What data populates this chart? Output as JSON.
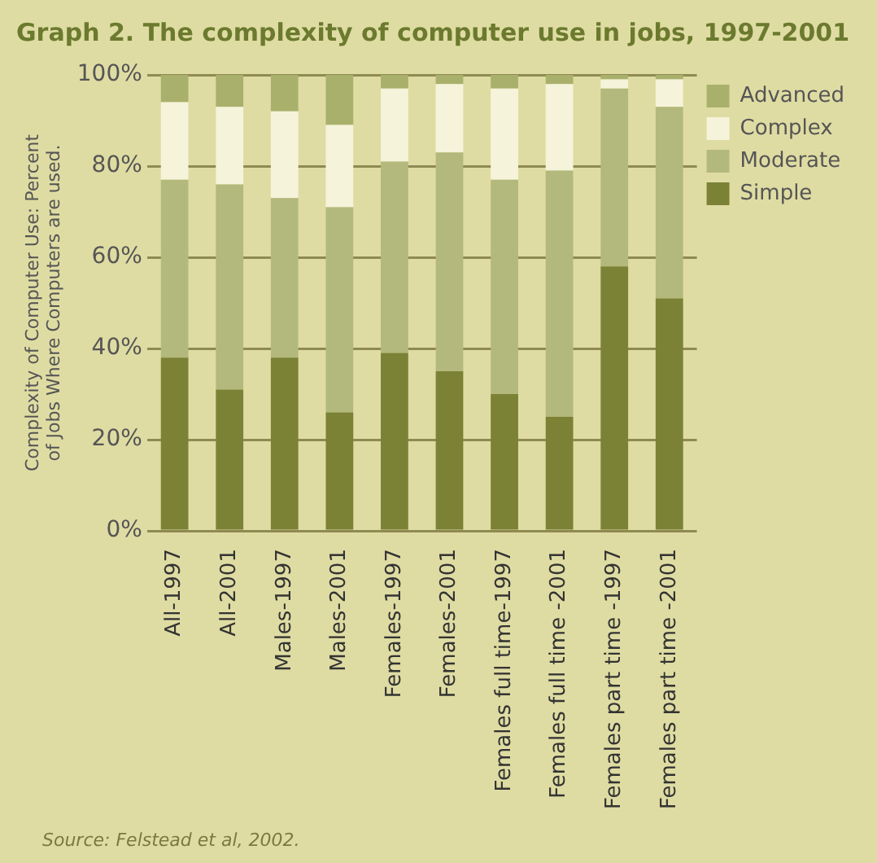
{
  "chart_data": {
    "type": "bar",
    "title": "Graph 2. The complexity of computer use in jobs, 1997-2001",
    "ylabel": "Complexity of Computer Use: Percent of Jobs Where Computers are used.",
    "categories": [
      "All-1997",
      "All-2001",
      "Males-1997",
      "Males-2001",
      "Females-1997",
      "Females-2001",
      "Females full time-1997",
      "Females full time -2001",
      "Females part time -1997",
      "Females part time -2001"
    ],
    "stacked": true,
    "series": [
      {
        "name": "Simple",
        "color": "#7b8236",
        "values": [
          38,
          31,
          38,
          26,
          39,
          35,
          30,
          25,
          58,
          51
        ]
      },
      {
        "name": "Moderate",
        "color": "#b3b97c",
        "values": [
          39,
          45,
          35,
          45,
          42,
          48,
          47,
          54,
          39,
          42
        ]
      },
      {
        "name": "Complex",
        "color": "#f5f3da",
        "values": [
          17,
          17,
          19,
          18,
          16,
          15,
          20,
          19,
          2,
          6
        ]
      },
      {
        "name": "Advanced",
        "color": "#a9b06c",
        "values": [
          6,
          7,
          8,
          11,
          3,
          2,
          3,
          2,
          1,
          1
        ]
      }
    ],
    "ylim": [
      0,
      100
    ],
    "yticks": [
      {
        "value": 0,
        "label": "0%"
      },
      {
        "value": 20,
        "label": "20%"
      },
      {
        "value": 40,
        "label": "40%"
      },
      {
        "value": 60,
        "label": "60%"
      },
      {
        "value": 80,
        "label": "80%"
      },
      {
        "value": 100,
        "label": "100%"
      }
    ],
    "grid": "y",
    "legend": "top right",
    "annotations": [
      "Source: Felstead et al, 2002."
    ]
  }
}
